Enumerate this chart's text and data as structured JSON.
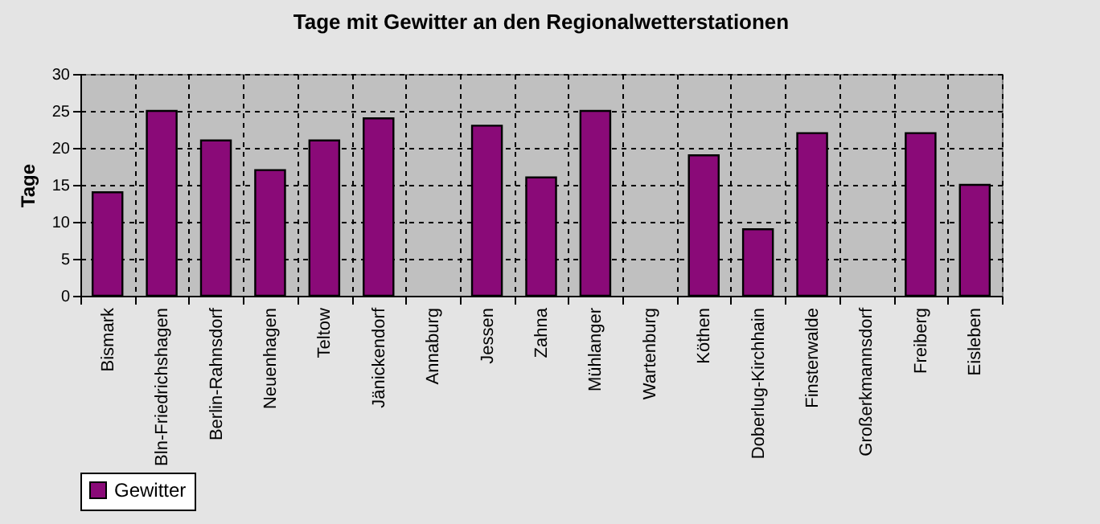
{
  "chart_data": {
    "type": "bar",
    "title": "Tage mit Gewitter an den Regionalwetterstationen",
    "ylabel": "Tage",
    "categories": [
      "Bismark",
      "Bln-Friedrichshagen",
      "Berlin-Rahnsdorf",
      "Neuenhagen",
      "Teltow",
      "Jänickendorf",
      "Annaburg",
      "Jessen",
      "Zahna",
      "Mühlanger",
      "Wartenburg",
      "Köthen",
      "Doberlug-Kirchhain",
      "Finsterwalde",
      "Großerkmannsdorf",
      "Freiberg",
      "Eisleben"
    ],
    "series": [
      {
        "name": "Gewitter",
        "color": "#8a0a78",
        "values": [
          14,
          25,
          21,
          17,
          21,
          24,
          null,
          23,
          16,
          25,
          null,
          19,
          9,
          22,
          null,
          22,
          15
        ]
      }
    ],
    "ylim": [
      0,
      30
    ],
    "yticks": [
      0,
      5,
      10,
      15,
      20,
      25,
      30
    ],
    "grid": true,
    "legend": "bottom"
  }
}
